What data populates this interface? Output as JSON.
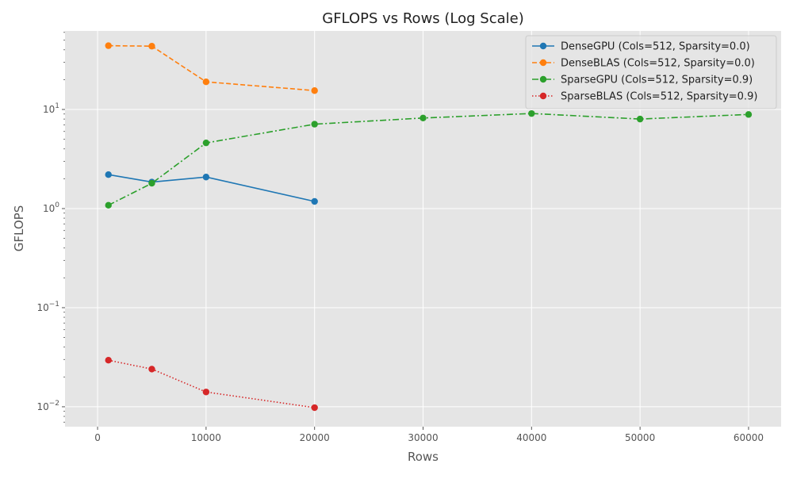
{
  "chart_data": {
    "type": "line",
    "title": "GFLOPS vs Rows (Log Scale)",
    "xlabel": "Rows",
    "ylabel": "GFLOPS",
    "xlim": [
      -3000,
      63000
    ],
    "ylim": [
      0.0063,
      62
    ],
    "yscale": "log",
    "x_ticks": [
      0,
      10000,
      20000,
      30000,
      40000,
      50000,
      60000
    ],
    "x_tick_labels": [
      "0",
      "10000",
      "20000",
      "30000",
      "40000",
      "50000",
      "60000"
    ],
    "y_ticks": [
      {
        "value": 0.01,
        "base": "10",
        "exp": "−2"
      },
      {
        "value": 0.1,
        "base": "10",
        "exp": "−1"
      },
      {
        "value": 1,
        "base": "10",
        "exp": "0"
      },
      {
        "value": 10,
        "base": "10",
        "exp": "1"
      }
    ],
    "grid": true,
    "legend_position": "top-right",
    "series": [
      {
        "name": "DenseGPU (Cols=512, Sparsity=0.0)",
        "color": "#1f77b4",
        "linestyle": "solid",
        "x": [
          1000,
          5000,
          10000,
          20000
        ],
        "y": [
          2.2,
          1.85,
          2.08,
          1.18
        ]
      },
      {
        "name": "DenseBLAS (Cols=512, Sparsity=0.0)",
        "color": "#ff7f0e",
        "linestyle": "dashed",
        "x": [
          1000,
          5000,
          10000,
          20000
        ],
        "y": [
          44,
          43.5,
          19,
          15.5
        ]
      },
      {
        "name": "SparseGPU (Cols=512, Sparsity=0.9)",
        "color": "#2ca02c",
        "linestyle": "dashdot",
        "x": [
          1000,
          5000,
          10000,
          20000,
          30000,
          40000,
          50000,
          60000
        ],
        "y": [
          1.08,
          1.8,
          4.6,
          7.1,
          8.2,
          9.1,
          8.0,
          8.9
        ]
      },
      {
        "name": "SparseBLAS (Cols=512, Sparsity=0.9)",
        "color": "#d62728",
        "linestyle": "dotted",
        "x": [
          1000,
          5000,
          10000,
          20000
        ],
        "y": [
          0.0295,
          0.024,
          0.0141,
          0.0098
        ]
      }
    ]
  }
}
